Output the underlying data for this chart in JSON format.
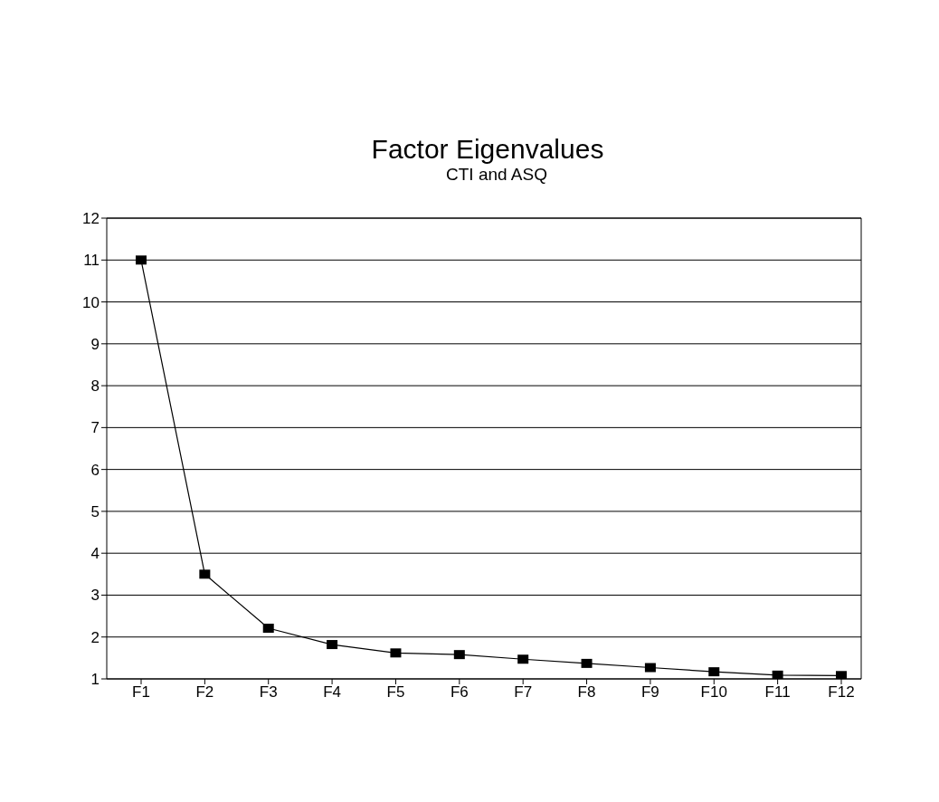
{
  "chart_data": {
    "type": "line",
    "title": "Factor Eigenvalues",
    "subtitle": "CTI and ASQ",
    "categories": [
      "F1",
      "F2",
      "F3",
      "F4",
      "F5",
      "F6",
      "F7",
      "F8",
      "F9",
      "F10",
      "F11",
      "F12"
    ],
    "values": [
      11.0,
      3.5,
      2.21,
      1.82,
      1.62,
      1.58,
      1.47,
      1.37,
      1.27,
      1.17,
      1.09,
      1.08
    ],
    "color": "#000000",
    "ylim": [
      1,
      12
    ],
    "yticks": [
      1,
      2,
      3,
      4,
      5,
      6,
      7,
      8,
      9,
      10,
      11,
      12
    ],
    "grid": "y",
    "marker": "square",
    "line_style": "solid"
  }
}
